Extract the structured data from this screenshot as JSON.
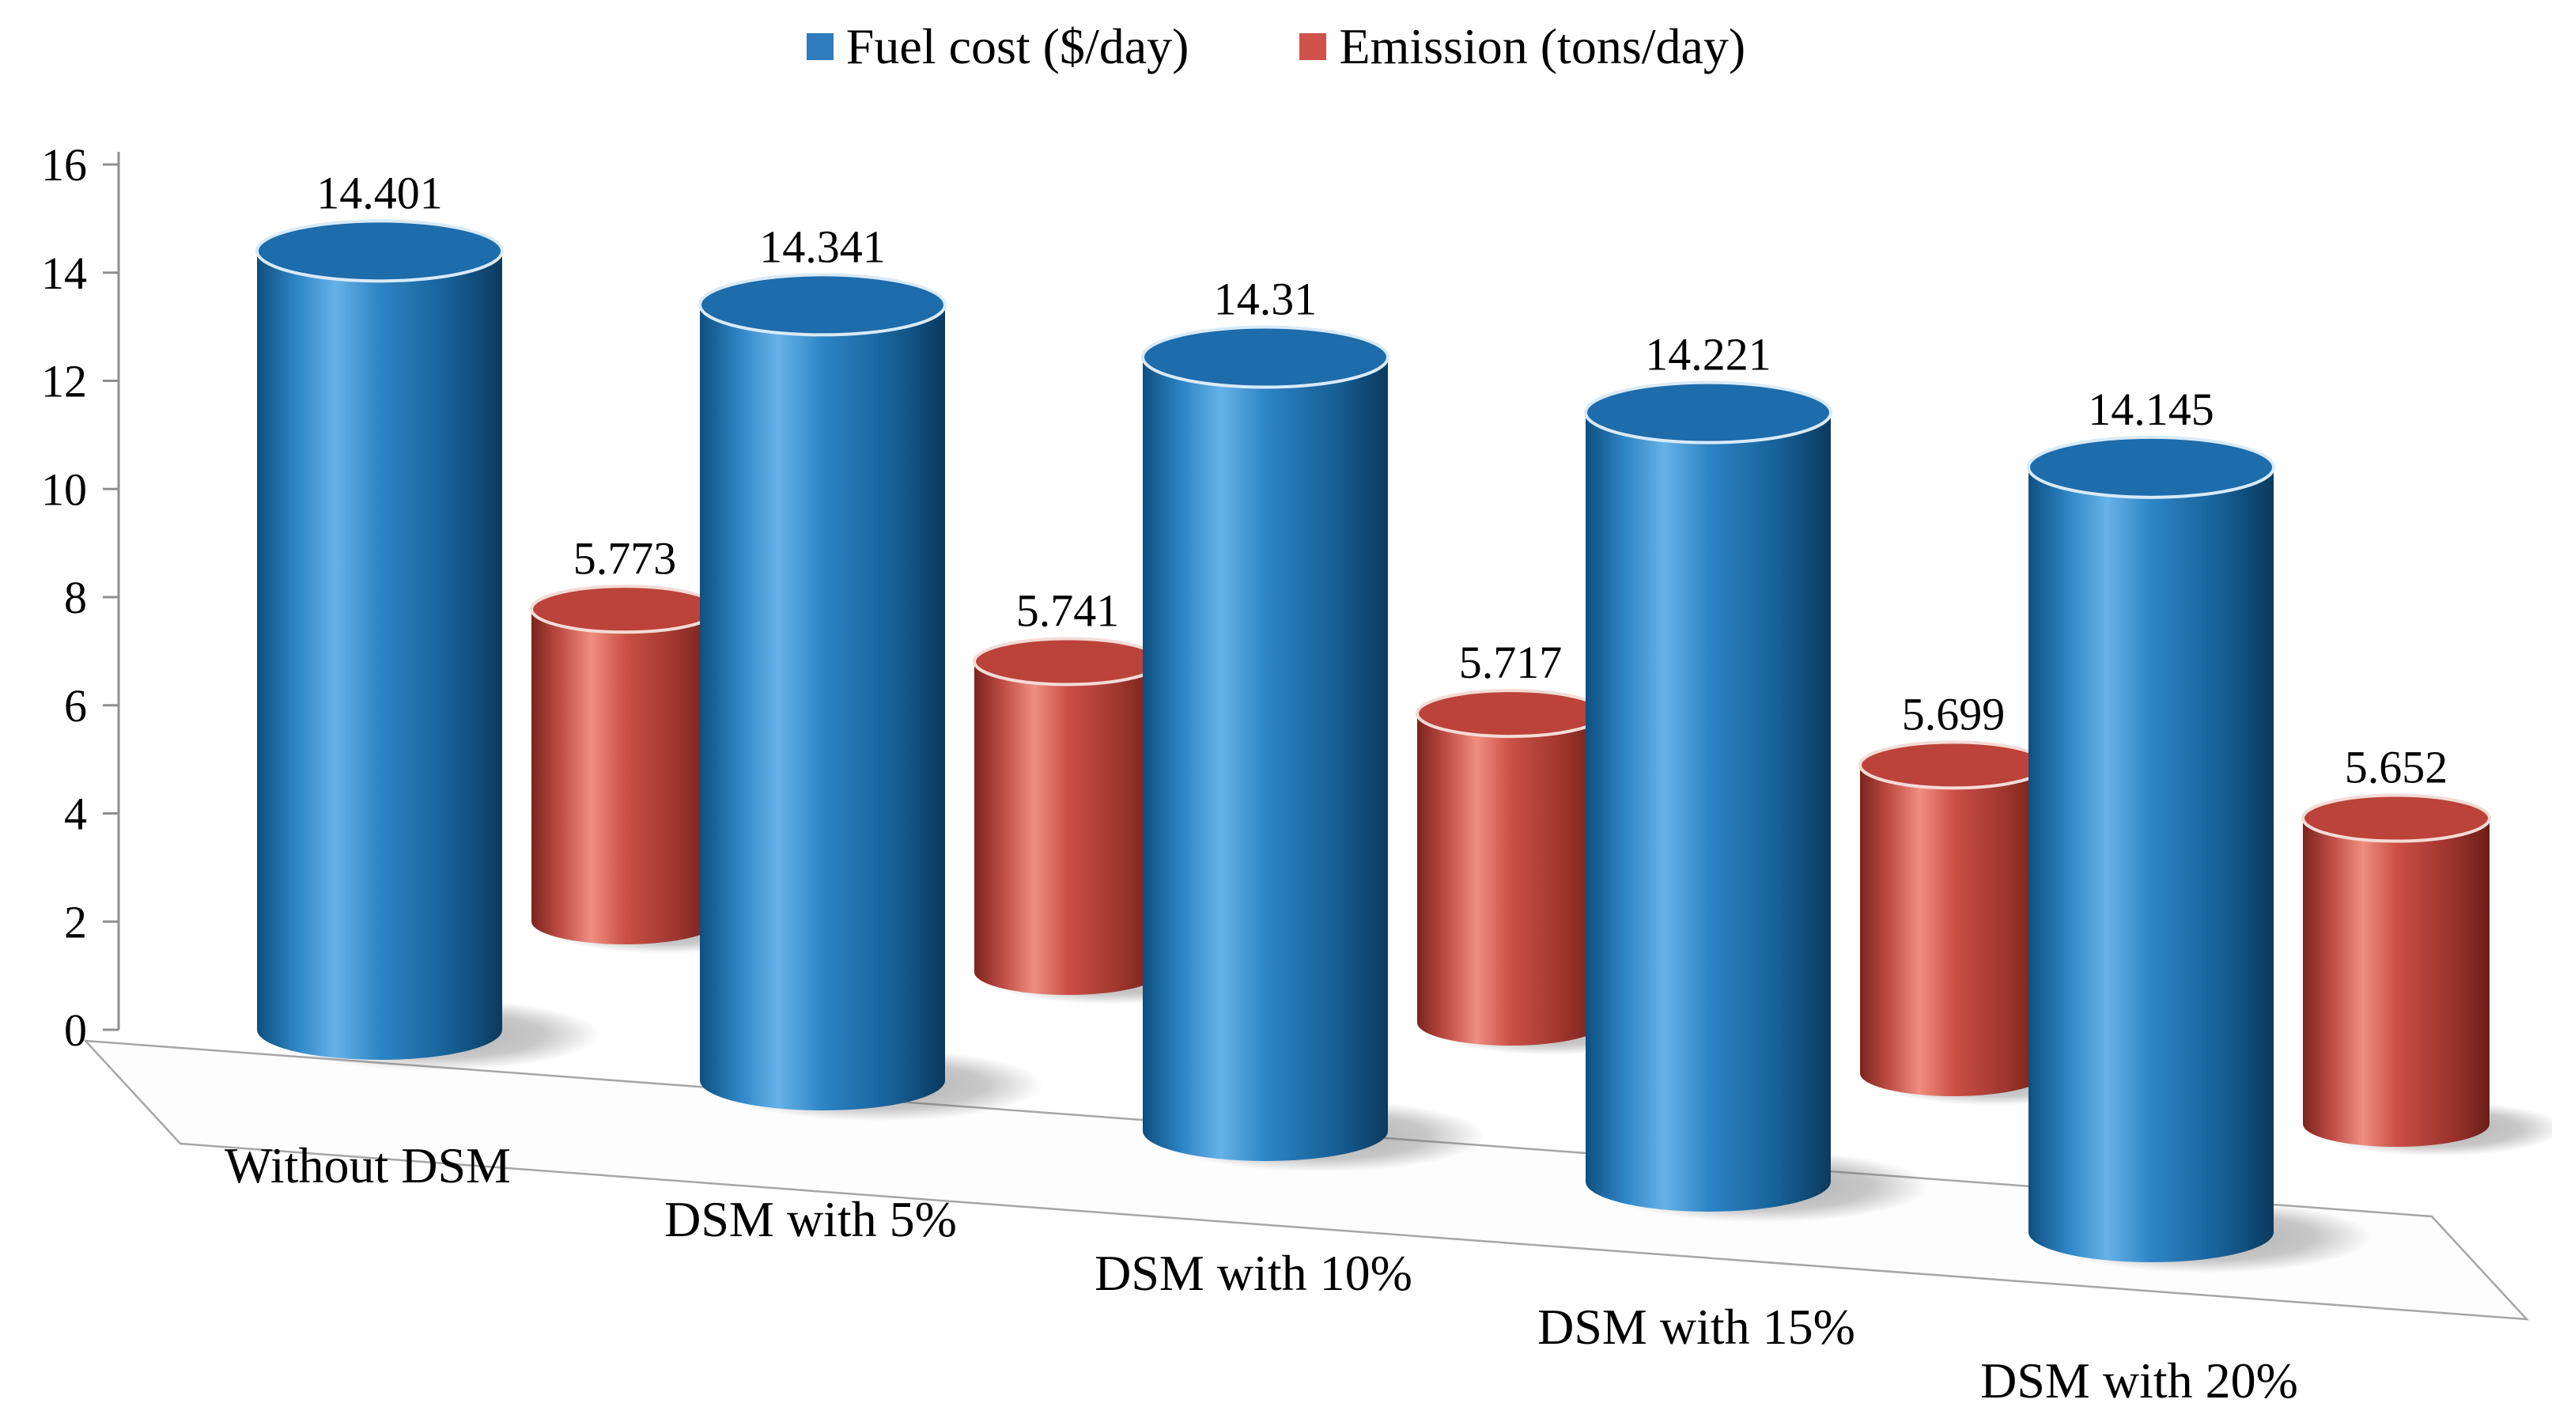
{
  "chart_data": {
    "type": "bar",
    "subtype": "3d-cylinder",
    "title": "",
    "categories": [
      "Without DSM",
      "DSM with 5%",
      "DSM with 10%",
      "DSM with 15%",
      "DSM with 20%"
    ],
    "series": [
      {
        "name": "Fuel cost ($/day)",
        "color": "#2e7bbd",
        "values": [
          14.401,
          14.341,
          14.31,
          14.221,
          14.145
        ],
        "labels": [
          "14.401",
          "14.341",
          "14.31",
          "14.221",
          "14.145"
        ]
      },
      {
        "name": "Emission (tons/day)",
        "color": "#d0524a",
        "values": [
          5.773,
          5.741,
          5.717,
          5.699,
          5.652
        ],
        "labels": [
          "5.773",
          "5.741",
          "5.717",
          "5.699",
          "5.652"
        ]
      }
    ],
    "value_axis": {
      "min": 0,
      "max": 16,
      "step": 2,
      "ticks": [
        "0",
        "2",
        "4",
        "6",
        "8",
        "10",
        "12",
        "14",
        "16"
      ]
    },
    "xlabel": "",
    "ylabel": "",
    "legend_position": "top",
    "grid": false
  },
  "legend": {
    "items": [
      {
        "label": "Fuel cost ($/day)",
        "color": "#2e7bbd"
      },
      {
        "label": "Emission (tons/day)",
        "color": "#d0524a"
      }
    ]
  }
}
